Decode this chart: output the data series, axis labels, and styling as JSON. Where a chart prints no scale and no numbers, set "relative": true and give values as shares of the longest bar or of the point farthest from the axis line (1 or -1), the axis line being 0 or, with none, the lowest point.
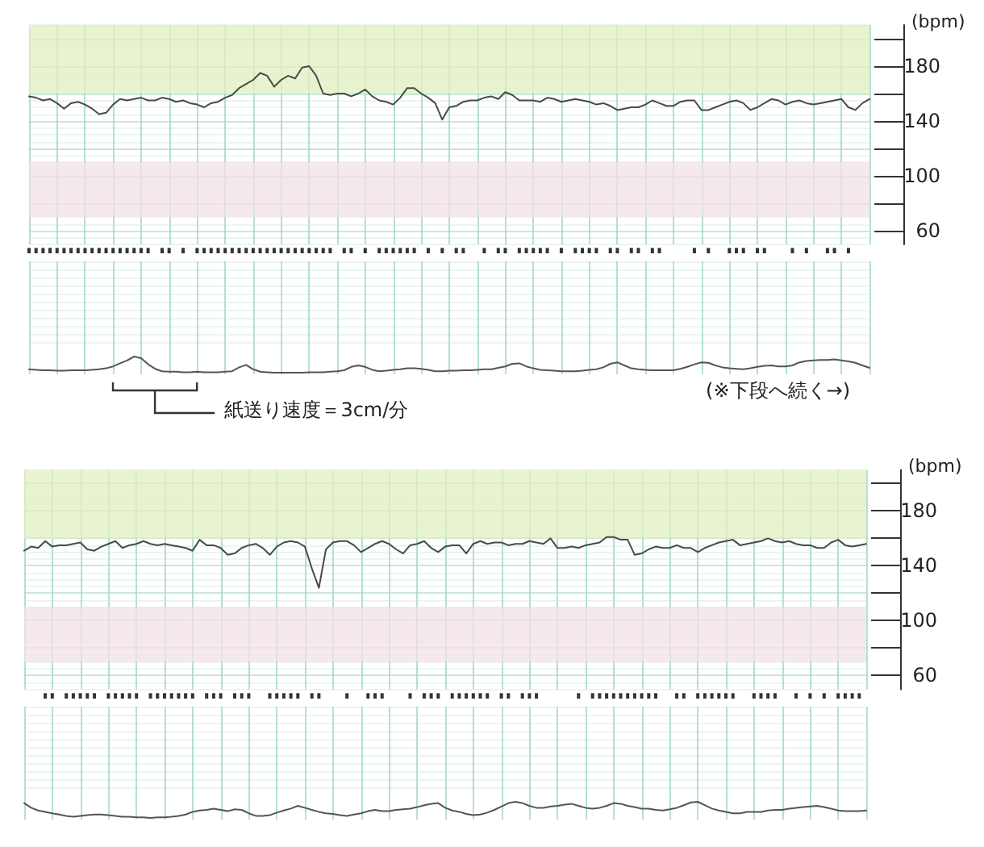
{
  "chart_data": [
    {
      "type": "line",
      "categories": [
        null,
        null,
        null,
        null,
        null,
        null,
        null,
        null,
        null,
        null,
        null,
        null,
        null,
        null,
        null,
        null,
        null,
        null,
        null,
        null,
        null,
        null,
        null,
        null,
        null,
        null,
        null,
        null,
        null,
        null,
        null,
        null,
        null,
        null,
        null,
        null,
        null,
        null,
        null,
        null,
        null,
        null,
        null,
        null,
        null,
        null,
        null,
        null,
        null,
        null,
        null,
        null,
        null,
        null,
        null,
        null,
        null,
        null,
        null,
        null,
        null,
        null,
        null,
        null,
        null,
        null,
        null,
        null,
        null,
        null,
        null,
        null,
        null,
        null,
        null,
        null,
        null,
        null,
        null,
        null,
        null,
        null,
        null,
        null,
        null,
        null,
        null,
        null,
        null,
        null,
        null,
        null,
        null,
        null,
        null,
        null,
        null,
        null,
        null,
        null,
        null,
        null,
        null,
        null,
        null,
        null,
        null,
        null,
        null,
        null,
        null,
        null,
        null,
        null,
        null,
        null,
        null,
        null,
        null,
        null,
        null
      ],
      "values": [
        158,
        157,
        155,
        156,
        153,
        149,
        153,
        154,
        152,
        149,
        145,
        146,
        152,
        156,
        155,
        156,
        157,
        155,
        155,
        157,
        156,
        154,
        155,
        153,
        152,
        150,
        153,
        154,
        157,
        159,
        164,
        167,
        170,
        175,
        173,
        165,
        170,
        173,
        171,
        179,
        180,
        173,
        160,
        159,
        160,
        160,
        158,
        160,
        163,
        158,
        155,
        154,
        152,
        157,
        164,
        164,
        160,
        157,
        153,
        141,
        150,
        151,
        154,
        155,
        155,
        157,
        158,
        156,
        161,
        159,
        155,
        155,
        155,
        154,
        157,
        156,
        154,
        155,
        156,
        155,
        154,
        152,
        153,
        151,
        148,
        149,
        150,
        150,
        152,
        155,
        153,
        151,
        151,
        154,
        155,
        155,
        148,
        148,
        150,
        152,
        154,
        155,
        153,
        148,
        150,
        153,
        156,
        155,
        152,
        154,
        155,
        153,
        152,
        153,
        154,
        155,
        156,
        150,
        148,
        153,
        156
      ],
      "color": "#4a4a4a",
      "ylabel": "(bpm)",
      "ylim": [
        50,
        210
      ],
      "yticks": [
        60,
        {
          "value": 80,
          "label": null
        },
        100,
        {
          "value": 120,
          "label": null
        },
        140,
        {
          "value": 160,
          "label": null
        },
        180,
        {
          "value": 200,
          "label": null
        }
      ],
      "grid": true,
      "tick_labels": "y",
      "bands": [
        {
          "axis": "y",
          "from": 160,
          "to": 210,
          "color": "#e3efc0"
        },
        {
          "axis": "y",
          "from": 70,
          "to": 110,
          "color": "#f3e1e6"
        }
      ]
    },
    {
      "type": "bar",
      "relative": true,
      "categories": [
        null,
        null,
        null,
        null,
        null,
        null,
        null,
        null,
        null,
        null,
        null,
        null,
        null,
        null,
        null,
        null,
        null,
        null,
        null,
        null,
        null,
        null,
        null,
        null,
        null,
        null,
        null,
        null,
        null,
        null,
        null,
        null,
        null,
        null,
        null,
        null,
        null,
        null,
        null,
        null,
        null,
        null,
        null,
        null,
        null,
        null,
        null,
        null,
        null,
        null,
        null,
        null,
        null,
        null,
        null,
        null,
        null,
        null,
        null,
        null,
        null,
        null,
        null,
        null,
        null,
        null,
        null,
        null,
        null,
        null,
        null,
        null,
        null,
        null,
        null,
        null,
        null,
        null,
        null,
        null,
        null,
        null,
        null,
        null,
        null,
        null,
        null,
        null,
        null,
        null,
        null,
        null,
        null,
        null,
        null,
        null,
        null,
        null,
        null,
        null,
        null,
        null,
        null,
        null,
        null,
        null,
        null,
        null,
        null,
        null,
        null,
        null,
        null,
        null,
        null,
        null,
        null,
        null,
        null,
        null,
        null
      ],
      "values": [
        1,
        1,
        1,
        1,
        1,
        1,
        1,
        1,
        1,
        1,
        1,
        1,
        1,
        1,
        1,
        1,
        1,
        1,
        null,
        1,
        1,
        null,
        1,
        null,
        1,
        1,
        1,
        1,
        1,
        1,
        1,
        1,
        1,
        1,
        1,
        1,
        1,
        1,
        1,
        1,
        1,
        1,
        1,
        1,
        null,
        1,
        1,
        null,
        1,
        null,
        1,
        1,
        1,
        1,
        1,
        1,
        null,
        1,
        null,
        1,
        null,
        1,
        1,
        null,
        null,
        1,
        null,
        1,
        1,
        null,
        1,
        1,
        1,
        1,
        1,
        null,
        1,
        null,
        1,
        1,
        1,
        1,
        null,
        1,
        1,
        null,
        1,
        1,
        null,
        1,
        1,
        null,
        null,
        null,
        null,
        1,
        null,
        1,
        null,
        null,
        1,
        1,
        1,
        null,
        1,
        1,
        null,
        null,
        null,
        1,
        null,
        1,
        null,
        null,
        1,
        1,
        null,
        1,
        null,
        null,
        null
      ],
      "color": "#333333",
      "tick_labels": false
    },
    {
      "type": "line",
      "relative": true,
      "categories": [
        null,
        null,
        null,
        null,
        null,
        null,
        null,
        null,
        null,
        null,
        null,
        null,
        null,
        null,
        null,
        null,
        null,
        null,
        null,
        null,
        null,
        null,
        null,
        null,
        null,
        null,
        null,
        null,
        null,
        null,
        null,
        null,
        null,
        null,
        null,
        null,
        null,
        null,
        null,
        null,
        null,
        null,
        null,
        null,
        null,
        null,
        null,
        null,
        null,
        null,
        null,
        null,
        null,
        null,
        null,
        null,
        null,
        null,
        null,
        null,
        null,
        null,
        null,
        null,
        null,
        null,
        null,
        null,
        null,
        null,
        null,
        null,
        null,
        null,
        null,
        null,
        null,
        null,
        null,
        null,
        null,
        null,
        null,
        null,
        null,
        null,
        null,
        null,
        null,
        null,
        null,
        null,
        null,
        null,
        null,
        null,
        null,
        null,
        null,
        null,
        null,
        null,
        null,
        null,
        null,
        null,
        null,
        null,
        null,
        null,
        null,
        null,
        null,
        null,
        null,
        null,
        null,
        null,
        null,
        null,
        null
      ],
      "values": [
        0.21,
        0.18,
        0.15,
        0.15,
        0.12,
        0.12,
        0.15,
        0.15,
        0.15,
        0.18,
        0.21,
        0.27,
        0.39,
        0.58,
        0.76,
        1,
        0.9,
        0.52,
        0.24,
        0.09,
        0.06,
        0.06,
        0.03,
        0.03,
        0.06,
        0.03,
        0.03,
        0.03,
        0.06,
        0.09,
        0.33,
        0.48,
        0.21,
        0.06,
        0.03,
        0,
        0,
        0,
        0,
        0,
        0.03,
        0.03,
        0.03,
        0.06,
        0.09,
        0.15,
        0.36,
        0.45,
        0.36,
        0.18,
        0.09,
        0.12,
        0.18,
        0.21,
        0.27,
        0.27,
        0.24,
        0.18,
        0.09,
        0.09,
        0.12,
        0.12,
        0.15,
        0.15,
        0.18,
        0.21,
        0.21,
        0.3,
        0.39,
        0.55,
        0.58,
        0.39,
        0.27,
        0.18,
        0.15,
        0.12,
        0.09,
        0.09,
        0.09,
        0.12,
        0.18,
        0.21,
        0.33,
        0.55,
        0.64,
        0.45,
        0.27,
        0.21,
        0.18,
        0.15,
        0.15,
        0.15,
        0.15,
        0.24,
        0.36,
        0.52,
        0.64,
        0.61,
        0.45,
        0.33,
        0.27,
        0.24,
        0.21,
        0.27,
        0.36,
        0.42,
        0.45,
        0.39,
        0.39,
        0.45,
        0.64,
        0.73,
        0.76,
        0.79,
        0.79,
        0.82,
        0.76,
        0.7,
        0.61,
        0.45,
        0.3
      ],
      "color": "#555555",
      "grid": true,
      "tick_labels": false,
      "annotations": [
        "紙送り速度＝3cm/分",
        "(※下段へ続く→)"
      ]
    },
    {
      "type": "line",
      "categories": [
        null,
        null,
        null,
        null,
        null,
        null,
        null,
        null,
        null,
        null,
        null,
        null,
        null,
        null,
        null,
        null,
        null,
        null,
        null,
        null,
        null,
        null,
        null,
        null,
        null,
        null,
        null,
        null,
        null,
        null,
        null,
        null,
        null,
        null,
        null,
        null,
        null,
        null,
        null,
        null,
        null,
        null,
        null,
        null,
        null,
        null,
        null,
        null,
        null,
        null,
        null,
        null,
        null,
        null,
        null,
        null,
        null,
        null,
        null,
        null,
        null,
        null,
        null,
        null,
        null,
        null,
        null,
        null,
        null,
        null,
        null,
        null,
        null,
        null,
        null,
        null,
        null,
        null,
        null,
        null,
        null,
        null,
        null,
        null,
        null,
        null,
        null,
        null,
        null,
        null,
        null,
        null,
        null,
        null,
        null,
        null,
        null,
        null,
        null,
        null,
        null,
        null,
        null,
        null,
        null,
        null,
        null,
        null,
        null,
        null,
        null,
        null,
        null,
        null,
        null,
        null,
        null,
        null,
        null,
        null,
        null
      ],
      "values": [
        151,
        154,
        153,
        158,
        154,
        155,
        155,
        156,
        157,
        152,
        151,
        154,
        156,
        158,
        153,
        155,
        156,
        158,
        156,
        155,
        156,
        155,
        154,
        153,
        151,
        159,
        155,
        155,
        153,
        148,
        149,
        153,
        155,
        156,
        153,
        148,
        154,
        157,
        158,
        157,
        154,
        138,
        124,
        152,
        157,
        158,
        158,
        155,
        150,
        153,
        156,
        158,
        156,
        152,
        149,
        155,
        156,
        158,
        153,
        150,
        154,
        155,
        155,
        149,
        156,
        158,
        156,
        157,
        157,
        155,
        156,
        156,
        158,
        157,
        156,
        160,
        153,
        153,
        154,
        153,
        155,
        156,
        157,
        161,
        161,
        159,
        159,
        148,
        149,
        152,
        154,
        153,
        153,
        155,
        153,
        153,
        150,
        153,
        155,
        157,
        158,
        159,
        155,
        156,
        157,
        158,
        160,
        158,
        157,
        158,
        156,
        155,
        155,
        153,
        153,
        157,
        159,
        155,
        154,
        155,
        156
      ],
      "color": "#4a4a4a",
      "ylabel": "(bpm)",
      "ylim": [
        50,
        210
      ],
      "yticks": [
        60,
        {
          "value": 80,
          "label": null
        },
        100,
        {
          "value": 120,
          "label": null
        },
        140,
        {
          "value": 160,
          "label": null
        },
        180,
        {
          "value": 200,
          "label": null
        }
      ],
      "grid": true,
      "tick_labels": "y",
      "bands": [
        {
          "axis": "y",
          "from": 160,
          "to": 210,
          "color": "#e3efc0"
        },
        {
          "axis": "y",
          "from": 70,
          "to": 110,
          "color": "#f3e1e6"
        }
      ]
    },
    {
      "type": "bar",
      "relative": true,
      "categories": [
        null,
        null,
        null,
        null,
        null,
        null,
        null,
        null,
        null,
        null,
        null,
        null,
        null,
        null,
        null,
        null,
        null,
        null,
        null,
        null,
        null,
        null,
        null,
        null,
        null,
        null,
        null,
        null,
        null,
        null,
        null,
        null,
        null,
        null,
        null,
        null,
        null,
        null,
        null,
        null,
        null,
        null,
        null,
        null,
        null,
        null,
        null,
        null,
        null,
        null,
        null,
        null,
        null,
        null,
        null,
        null,
        null,
        null,
        null,
        null,
        null,
        null,
        null,
        null,
        null,
        null,
        null,
        null,
        null,
        null,
        null,
        null,
        null,
        null,
        null,
        null,
        null,
        null,
        null,
        null,
        null,
        null,
        null,
        null,
        null,
        null,
        null,
        null,
        null,
        null,
        null,
        null,
        null,
        null,
        null,
        null,
        null,
        null,
        null,
        null,
        null,
        null,
        null,
        null,
        null,
        null,
        null,
        null,
        null,
        null,
        null,
        null,
        null,
        null,
        null,
        null,
        null,
        null,
        null,
        null,
        null
      ],
      "values": [
        null,
        null,
        null,
        1,
        1,
        null,
        1,
        1,
        1,
        1,
        1,
        null,
        1,
        1,
        1,
        1,
        1,
        null,
        1,
        1,
        1,
        1,
        1,
        1,
        1,
        null,
        1,
        1,
        1,
        null,
        1,
        1,
        1,
        null,
        null,
        1,
        1,
        1,
        1,
        1,
        null,
        1,
        1,
        null,
        null,
        null,
        1,
        null,
        null,
        1,
        1,
        1,
        null,
        null,
        null,
        1,
        null,
        1,
        1,
        1,
        null,
        1,
        1,
        1,
        1,
        1,
        1,
        null,
        1,
        1,
        null,
        1,
        1,
        1,
        null,
        null,
        null,
        null,
        null,
        1,
        null,
        1,
        1,
        1,
        1,
        1,
        1,
        1,
        1,
        1,
        1,
        null,
        null,
        1,
        1,
        null,
        1,
        1,
        1,
        1,
        1,
        1,
        null,
        null,
        1,
        1,
        1,
        1,
        null,
        null,
        1,
        null,
        1,
        null,
        1,
        null,
        1,
        1,
        1,
        1,
        null
      ],
      "color": "#333333",
      "tick_labels": false
    },
    {
      "type": "line",
      "relative": true,
      "categories": [
        null,
        null,
        null,
        null,
        null,
        null,
        null,
        null,
        null,
        null,
        null,
        null,
        null,
        null,
        null,
        null,
        null,
        null,
        null,
        null,
        null,
        null,
        null,
        null,
        null,
        null,
        null,
        null,
        null,
        null,
        null,
        null,
        null,
        null,
        null,
        null,
        null,
        null,
        null,
        null,
        null,
        null,
        null,
        null,
        null,
        null,
        null,
        null,
        null,
        null,
        null,
        null,
        null,
        null,
        null,
        null,
        null,
        null,
        null,
        null,
        null,
        null,
        null,
        null,
        null,
        null,
        null,
        null,
        null,
        null,
        null,
        null,
        null,
        null,
        null,
        null,
        null,
        null,
        null,
        null,
        null,
        null,
        null,
        null,
        null,
        null,
        null,
        null,
        null,
        null,
        null,
        null,
        null,
        null,
        null,
        null,
        null,
        null,
        null,
        null,
        null,
        null,
        null,
        null,
        null,
        null,
        null,
        null,
        null,
        null,
        null,
        null,
        null,
        null,
        null,
        null,
        null,
        null,
        null,
        null,
        null
      ],
      "values": [
        0.92,
        0.63,
        0.46,
        0.38,
        0.29,
        0.21,
        0.13,
        0.08,
        0.13,
        0.17,
        0.21,
        0.21,
        0.17,
        0.13,
        0.08,
        0.08,
        0.04,
        0.04,
        0,
        0.04,
        0.04,
        0.08,
        0.13,
        0.21,
        0.38,
        0.46,
        0.5,
        0.58,
        0.5,
        0.42,
        0.54,
        0.5,
        0.29,
        0.13,
        0.13,
        0.17,
        0.33,
        0.46,
        0.58,
        0.75,
        0.63,
        0.5,
        0.38,
        0.29,
        0.25,
        0.17,
        0.13,
        0.21,
        0.29,
        0.42,
        0.5,
        0.42,
        0.42,
        0.5,
        0.54,
        0.58,
        0.67,
        0.79,
        0.88,
        0.92,
        0.63,
        0.46,
        0.38,
        0.25,
        0.17,
        0.21,
        0.33,
        0.5,
        0.71,
        0.92,
        1,
        0.92,
        0.75,
        0.63,
        0.63,
        0.71,
        0.75,
        0.83,
        0.88,
        0.75,
        0.63,
        0.58,
        0.63,
        0.75,
        0.92,
        0.88,
        0.75,
        0.67,
        0.58,
        0.58,
        0.5,
        0.46,
        0.54,
        0.63,
        0.79,
        0.96,
        1,
        0.79,
        0.58,
        0.46,
        0.38,
        0.29,
        0.29,
        0.38,
        0.38,
        0.38,
        0.46,
        0.5,
        0.5,
        0.58,
        0.63,
        0.67,
        0.71,
        0.75,
        0.67,
        0.58,
        0.46,
        0.42,
        0.42,
        0.42,
        0.46
      ],
      "color": "#555555",
      "grid": true,
      "tick_labels": false
    }
  ]
}
